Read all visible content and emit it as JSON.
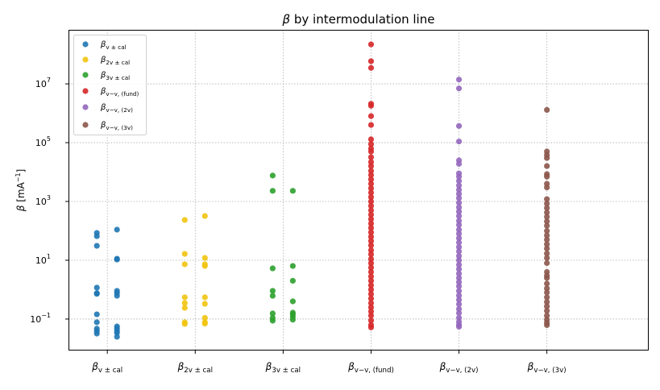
{
  "chart_data": {
    "type": "scatter",
    "title": {
      "base": "β",
      "rest": " by intermodulation line"
    },
    "ylabel": {
      "base": "β",
      "rest": " [mA",
      "sup": "−1",
      "end": "]"
    },
    "yscale": "log",
    "ylim": [
      0.0085,
      690000000
    ],
    "yticks": [
      {
        "value": 0.1,
        "base": "10",
        "exp": "−1"
      },
      {
        "value": 10,
        "base": "10",
        "exp": "1"
      },
      {
        "value": 1000,
        "base": "10",
        "exp": "3"
      },
      {
        "value": 100000,
        "base": "10",
        "exp": "5"
      },
      {
        "value": 10000000,
        "base": "10",
        "exp": "7"
      }
    ],
    "grid": true,
    "legend_position": "top-left",
    "categories": [
      {
        "base": "β",
        "sub": "v ± cal"
      },
      {
        "base": "β",
        "sub": "2v ± cal"
      },
      {
        "base": "β",
        "sub": "3v ± cal"
      },
      {
        "base": "β",
        "sub": "v−v, (fund)"
      },
      {
        "base": "β",
        "sub": "v−v, (2v)"
      },
      {
        "base": "β",
        "sub": "v−v, (3v)"
      }
    ],
    "series": [
      {
        "name": {
          "base": "β",
          "sub": "v ± cal"
        },
        "color": "#1f77b4",
        "groups": [
          [
            85,
            66,
            31,
            1.17,
            0.76,
            0.72,
            0.145,
            0.078,
            0.047,
            0.039,
            0.032
          ],
          [
            110,
            11.3,
            10.6,
            0.91,
            0.77,
            0.62,
            0.056,
            0.047,
            0.039,
            0.034,
            0.025
          ]
        ]
      },
      {
        "name": {
          "base": "β",
          "sub": "2v ± cal"
        },
        "color": "#f1c40f",
        "groups": [
          [
            235,
            16.5,
            7.3,
            0.55,
            0.35,
            0.24,
            0.078,
            0.068
          ],
          [
            320,
            12,
            7.3,
            6.4,
            0.55,
            0.33,
            0.11,
            0.078,
            0.07
          ]
        ]
      },
      {
        "name": {
          "base": "β",
          "sub": "3v ± cal"
        },
        "color": "#2ca02c",
        "groups": [
          [
            7600,
            2300,
            5.3,
            0.91,
            0.62,
            0.155,
            0.11,
            0.088
          ],
          [
            2300,
            6.4,
            2.0,
            0.4,
            0.165,
            0.145,
            0.12,
            0.095
          ]
        ]
      },
      {
        "name": {
          "base": "β",
          "sub": "v−v, (fund)"
        },
        "color": "#d62728",
        "groups": [
          [
            220000000,
            59000000,
            35000000,
            2100000,
            1800000,
            800000,
            400000,
            130000,
            89000,
            63000,
            50000,
            32000,
            22000,
            16000,
            11000,
            7900,
            5600,
            4000,
            2800,
            2000,
            1400,
            1000,
            710,
            500,
            355,
            250,
            178,
            126,
            89,
            63,
            45,
            32,
            22,
            16,
            11,
            7.9,
            5.6,
            4,
            2.8,
            2,
            1.4,
            1,
            0.71,
            0.5,
            0.35,
            0.25,
            0.18,
            0.13,
            0.089,
            0.063,
            0.052
          ]
        ]
      },
      {
        "name": {
          "base": "β",
          "sub": "v−v, (2v)"
        },
        "color": "#9467bd",
        "groups": [
          [
            14000000,
            7000000,
            370000,
            110000,
            25000,
            19000,
            9000,
            7000,
            5000,
            3500,
            2500,
            1800,
            1300,
            900,
            630,
            450,
            320,
            220,
            160,
            110,
            80,
            56,
            40,
            28,
            20,
            14,
            10,
            7,
            5,
            3.5,
            2.5,
            1.8,
            1.3,
            0.9,
            0.63,
            0.45,
            0.32,
            0.22,
            0.16,
            0.11,
            0.08,
            0.063,
            0.055
          ]
        ]
      },
      {
        "name": {
          "base": "β",
          "sub": "v−v, (3v)"
        },
        "color": "#8c564b",
        "groups": [
          [
            1300000,
            50000,
            38000,
            30000,
            16000,
            8500,
            7000,
            4000,
            3000,
            1200,
            850,
            600,
            420,
            300,
            210,
            150,
            100,
            70,
            50,
            35,
            25,
            17,
            12,
            8,
            4,
            3,
            2.5,
            1.6,
            1.1,
            0.8,
            0.55,
            0.38,
            0.27,
            0.19,
            0.13,
            0.095,
            0.075,
            0.062
          ]
        ]
      }
    ]
  }
}
